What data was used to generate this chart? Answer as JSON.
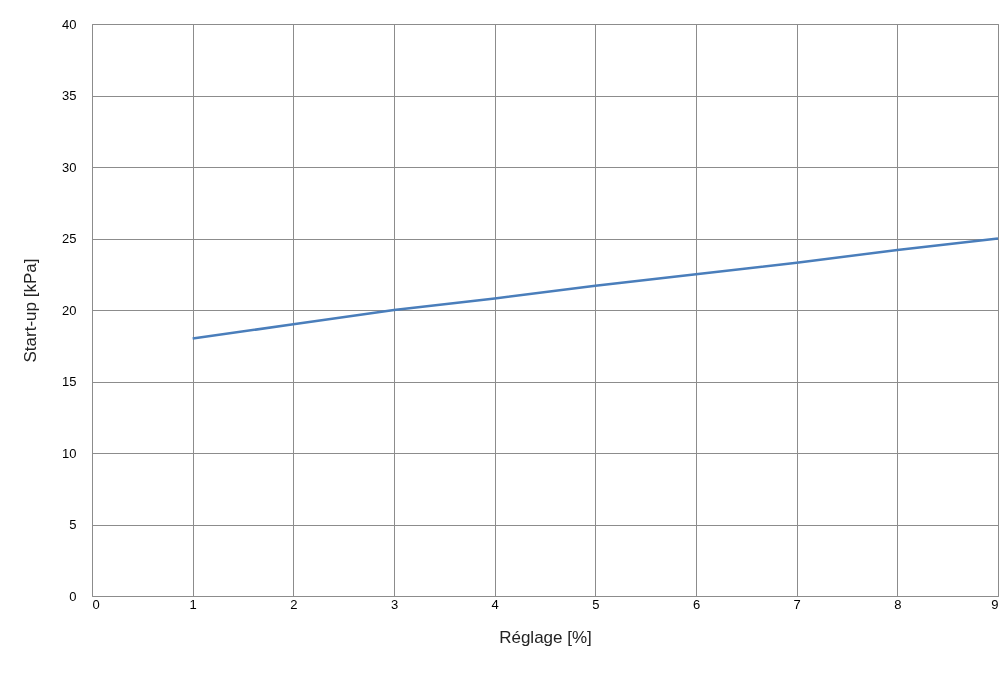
{
  "chart_data": {
    "type": "line",
    "xlabel": "Réglage [%]",
    "ylabel": "Start-up [kPa]",
    "x": [
      1,
      2,
      3,
      4,
      5,
      6,
      7,
      8,
      9
    ],
    "series": [
      {
        "color": "#4a7ebb",
        "values": [
          18,
          19,
          20,
          20.8,
          21.7,
          22.5,
          23.3,
          24.2,
          25
        ]
      }
    ],
    "xlim": [
      0,
      9
    ],
    "ylim": [
      0,
      40
    ],
    "xticks": [
      0,
      1,
      2,
      3,
      4,
      5,
      6,
      7,
      8,
      9
    ],
    "yticks": [
      0,
      5,
      10,
      15,
      20,
      25,
      30,
      35,
      40
    ],
    "grid": true
  }
}
